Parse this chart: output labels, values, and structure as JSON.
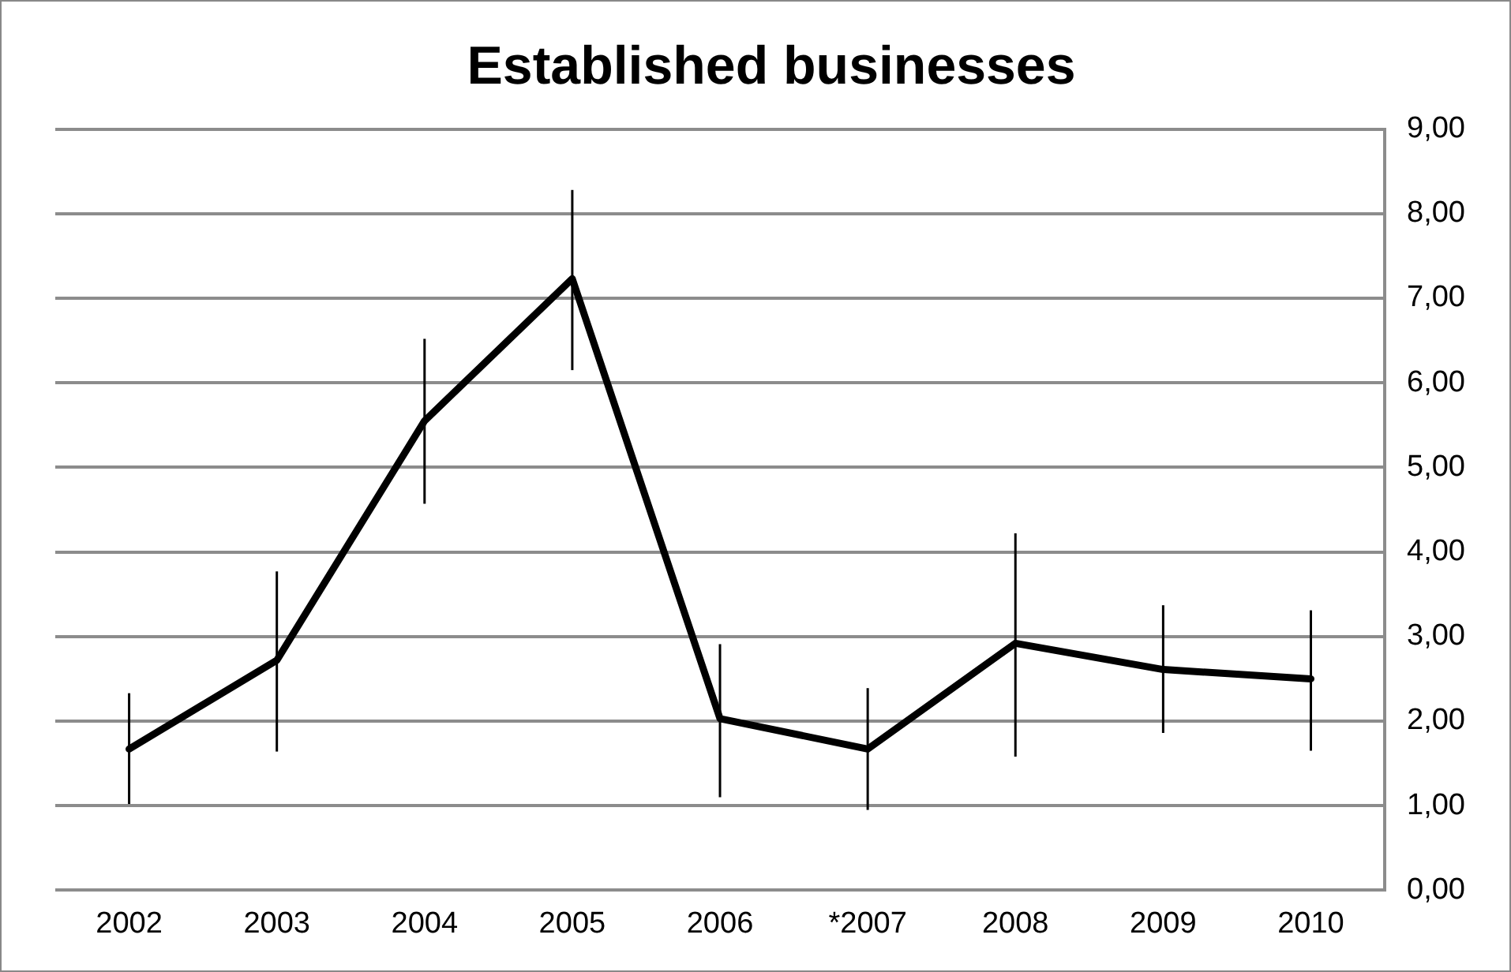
{
  "chart_data": {
    "type": "line",
    "title": "Established businesses",
    "categories": [
      "2002",
      "2003",
      "2004",
      "2005",
      "2006",
      "*2007",
      "2008",
      "2009",
      "2010"
    ],
    "series": [
      {
        "color": "#000000",
        "values": [
          1.67,
          2.72,
          5.55,
          7.23,
          2.03,
          1.67,
          2.92,
          2.61,
          2.5
        ],
        "errors": [
          [
            1.02,
            2.33
          ],
          [
            1.64,
            3.77
          ],
          [
            4.57,
            6.52
          ],
          [
            6.15,
            8.28
          ],
          [
            1.1,
            2.91
          ],
          [
            0.95,
            2.39
          ],
          [
            1.58,
            4.22
          ],
          [
            1.86,
            3.37
          ],
          [
            1.65,
            3.31
          ]
        ]
      }
    ],
    "ylim": [
      0,
      9
    ],
    "yticks": [
      {
        "value": 0,
        "label": "0,00"
      },
      {
        "value": 1,
        "label": "1,00"
      },
      {
        "value": 2,
        "label": "2,00"
      },
      {
        "value": 3,
        "label": "3,00"
      },
      {
        "value": 4,
        "label": "4,00"
      },
      {
        "value": 5,
        "label": "5,00"
      },
      {
        "value": 6,
        "label": "6,00"
      },
      {
        "value": 7,
        "label": "7,00"
      },
      {
        "value": 8,
        "label": "8,00"
      },
      {
        "value": 9,
        "label": "9,00"
      }
    ],
    "grid": "y",
    "marker": "none",
    "line_style": "solid"
  }
}
